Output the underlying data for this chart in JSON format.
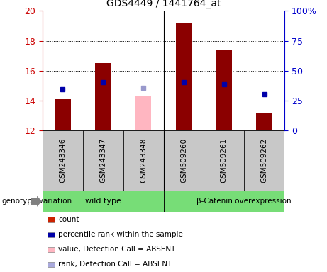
{
  "title": "GDS4449 / 1441764_at",
  "samples": [
    "GSM243346",
    "GSM243347",
    "GSM243348",
    "GSM509260",
    "GSM509261",
    "GSM509262"
  ],
  "bar_bottoms": [
    12,
    12,
    12,
    12,
    12,
    12
  ],
  "bar_values": [
    14.1,
    16.5,
    14.35,
    19.2,
    17.4,
    13.2
  ],
  "bar_colors": [
    "#8B0000",
    "#8B0000",
    "#FFB6C1",
    "#8B0000",
    "#8B0000",
    "#8B0000"
  ],
  "rank_values": [
    14.75,
    15.25,
    14.85,
    15.25,
    15.1,
    14.45
  ],
  "rank_colors": [
    "#0000AA",
    "#0000AA",
    "#9999CC",
    "#0000AA",
    "#0000AA",
    "#0000AA"
  ],
  "ylim_left": [
    12,
    20
  ],
  "ylim_right": [
    0,
    100
  ],
  "yticks_left": [
    12,
    14,
    16,
    18,
    20
  ],
  "yticks_right": [
    0,
    25,
    50,
    75,
    100
  ],
  "ytick_labels_right": [
    "0",
    "25",
    "50",
    "75",
    "100%"
  ],
  "left_color": "#CC0000",
  "right_color": "#0000CC",
  "genotype_label": "genotype/variation",
  "group1_label": "wild type",
  "group2_label": "β-Catenin overexpression",
  "group_color": "#77DD77",
  "legend_items": [
    {
      "color": "#CC2200",
      "label": "count"
    },
    {
      "color": "#0000AA",
      "label": "percentile rank within the sample"
    },
    {
      "color": "#FFB6C1",
      "label": "value, Detection Call = ABSENT"
    },
    {
      "color": "#AAAADD",
      "label": "rank, Detection Call = ABSENT"
    }
  ],
  "bg_color": "#C8C8C8",
  "plot_bg": "#FFFFFF",
  "bar_width": 0.4,
  "marker_size": 5
}
